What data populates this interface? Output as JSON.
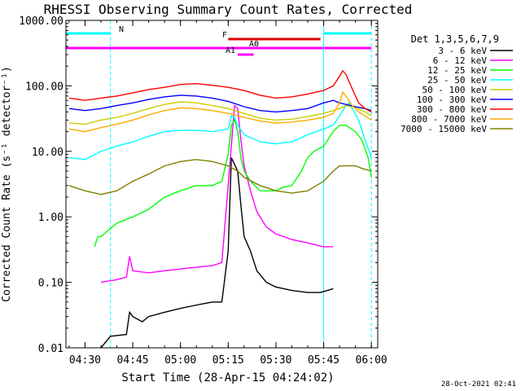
{
  "chart_data": {
    "type": "line",
    "title": "RHESSI Observing Summary Count Rates, Corrected",
    "xlabel": "Start Time (28-Apr-15 04:24:02)",
    "ylabel": "Corrected Count Rate (s⁻¹ detector⁻¹)",
    "footer": "28-Oct-2021 02:41",
    "y_scale": "log",
    "ylim": [
      0.01,
      1000
    ],
    "y_ticks": [
      {
        "v": 0.01,
        "label": "0.01"
      },
      {
        "v": 0.1,
        "label": "0.10"
      },
      {
        "v": 1,
        "label": "1.00"
      },
      {
        "v": 10,
        "label": "10.00"
      },
      {
        "v": 100,
        "label": "100.00"
      },
      {
        "v": 1000,
        "label": "1000.00"
      }
    ],
    "xlim": [
      264,
      362
    ],
    "x_ticks": [
      {
        "v": 270,
        "label": "04:30"
      },
      {
        "v": 285,
        "label": "04:45"
      },
      {
        "v": 300,
        "label": "05:00"
      },
      {
        "v": 315,
        "label": "05:15"
      },
      {
        "v": 330,
        "label": "05:30"
      },
      {
        "v": 345,
        "label": "05:45"
      },
      {
        "v": 360,
        "label": "06:00"
      }
    ],
    "legend": {
      "position": "right",
      "header": "Det 1,3,5,6,7,9"
    },
    "series": [
      {
        "name": "3 - 6 keV",
        "color": "#000000",
        "points": [
          [
            275,
            0.01
          ],
          [
            278,
            0.015
          ],
          [
            283,
            0.016
          ],
          [
            284,
            0.035
          ],
          [
            285,
            0.03
          ],
          [
            288,
            0.025
          ],
          [
            290,
            0.03
          ],
          [
            295,
            0.035
          ],
          [
            300,
            0.04
          ],
          [
            305,
            0.045
          ],
          [
            310,
            0.05
          ],
          [
            313,
            0.05
          ],
          [
            315,
            0.3
          ],
          [
            316,
            8
          ],
          [
            318,
            5
          ],
          [
            319,
            1.5
          ],
          [
            320,
            0.5
          ],
          [
            322,
            0.3
          ],
          [
            324,
            0.15
          ],
          [
            327,
            0.1
          ],
          [
            330,
            0.085
          ],
          [
            335,
            0.075
          ],
          [
            340,
            0.07
          ],
          [
            344,
            0.07
          ],
          [
            348,
            0.08
          ]
        ]
      },
      {
        "name": "6 - 12 keV",
        "color": "#ff00ff",
        "points": [
          [
            275,
            0.1
          ],
          [
            280,
            0.11
          ],
          [
            283,
            0.12
          ],
          [
            284,
            0.25
          ],
          [
            285,
            0.15
          ],
          [
            290,
            0.14
          ],
          [
            295,
            0.15
          ],
          [
            300,
            0.16
          ],
          [
            305,
            0.17
          ],
          [
            310,
            0.18
          ],
          [
            313,
            0.2
          ],
          [
            315,
            3
          ],
          [
            317,
            50
          ],
          [
            318,
            45
          ],
          [
            319,
            15
          ],
          [
            320,
            6
          ],
          [
            322,
            2.5
          ],
          [
            324,
            1.2
          ],
          [
            327,
            0.7
          ],
          [
            330,
            0.55
          ],
          [
            335,
            0.45
          ],
          [
            340,
            0.4
          ],
          [
            345,
            0.35
          ],
          [
            348,
            0.35
          ]
        ]
      },
      {
        "name": "12 - 25 keV",
        "color": "#00ff00",
        "points": [
          [
            273,
            0.35
          ],
          [
            274,
            0.5
          ],
          [
            275,
            0.5
          ],
          [
            280,
            0.8
          ],
          [
            285,
            1
          ],
          [
            290,
            1.3
          ],
          [
            295,
            2
          ],
          [
            300,
            2.5
          ],
          [
            305,
            3
          ],
          [
            310,
            3
          ],
          [
            313,
            3.5
          ],
          [
            315,
            9
          ],
          [
            316,
            25
          ],
          [
            317,
            30
          ],
          [
            318,
            20
          ],
          [
            319,
            8
          ],
          [
            320,
            5
          ],
          [
            322,
            3.5
          ],
          [
            325,
            2.5
          ],
          [
            328,
            2.5
          ],
          [
            330,
            2.5
          ],
          [
            332,
            2.8
          ],
          [
            335,
            3
          ],
          [
            338,
            5
          ],
          [
            340,
            8
          ],
          [
            342,
            10
          ],
          [
            345,
            12
          ],
          [
            348,
            20
          ],
          [
            350,
            25
          ],
          [
            352,
            25
          ],
          [
            355,
            20
          ],
          [
            357,
            15
          ],
          [
            359,
            8
          ],
          [
            360,
            4
          ]
        ]
      },
      {
        "name": "25 - 50 keV",
        "color": "#00ffff",
        "points": [
          [
            265,
            8
          ],
          [
            270,
            7.5
          ],
          [
            275,
            10
          ],
          [
            280,
            12
          ],
          [
            285,
            14
          ],
          [
            290,
            17
          ],
          [
            295,
            20
          ],
          [
            300,
            21
          ],
          [
            305,
            21
          ],
          [
            310,
            20
          ],
          [
            315,
            22
          ],
          [
            316,
            35
          ],
          [
            317,
            33
          ],
          [
            318,
            25
          ],
          [
            320,
            18
          ],
          [
            325,
            14
          ],
          [
            330,
            13
          ],
          [
            335,
            14
          ],
          [
            340,
            18
          ],
          [
            345,
            22
          ],
          [
            348,
            25
          ],
          [
            350,
            35
          ],
          [
            352,
            50
          ],
          [
            353,
            55
          ],
          [
            354,
            45
          ],
          [
            356,
            30
          ],
          [
            358,
            15
          ],
          [
            360,
            8
          ]
        ]
      },
      {
        "name": "50 - 100 keV",
        "color": "#cccc00",
        "points": [
          [
            265,
            27
          ],
          [
            270,
            26
          ],
          [
            275,
            30
          ],
          [
            280,
            33
          ],
          [
            285,
            38
          ],
          [
            290,
            45
          ],
          [
            295,
            52
          ],
          [
            300,
            57
          ],
          [
            305,
            55
          ],
          [
            310,
            50
          ],
          [
            315,
            45
          ],
          [
            320,
            38
          ],
          [
            325,
            32
          ],
          [
            330,
            30
          ],
          [
            335,
            31
          ],
          [
            340,
            34
          ],
          [
            345,
            38
          ],
          [
            348,
            42
          ],
          [
            350,
            45
          ],
          [
            352,
            50
          ],
          [
            355,
            47
          ],
          [
            358,
            40
          ],
          [
            360,
            35
          ]
        ]
      },
      {
        "name": "100 - 300 keV",
        "color": "#0000ff",
        "points": [
          [
            265,
            45
          ],
          [
            270,
            42
          ],
          [
            275,
            45
          ],
          [
            280,
            50
          ],
          [
            285,
            55
          ],
          [
            290,
            62
          ],
          [
            295,
            68
          ],
          [
            300,
            72
          ],
          [
            305,
            70
          ],
          [
            310,
            65
          ],
          [
            315,
            58
          ],
          [
            320,
            48
          ],
          [
            325,
            42
          ],
          [
            330,
            40
          ],
          [
            335,
            42
          ],
          [
            340,
            45
          ],
          [
            345,
            55
          ],
          [
            348,
            60
          ],
          [
            350,
            55
          ],
          [
            352,
            52
          ],
          [
            355,
            48
          ],
          [
            358,
            45
          ],
          [
            360,
            42
          ]
        ]
      },
      {
        "name": "300 - 800 keV",
        "color": "#ff0000",
        "points": [
          [
            265,
            65
          ],
          [
            270,
            60
          ],
          [
            275,
            65
          ],
          [
            280,
            70
          ],
          [
            285,
            78
          ],
          [
            290,
            88
          ],
          [
            295,
            95
          ],
          [
            300,
            105
          ],
          [
            305,
            108
          ],
          [
            310,
            102
          ],
          [
            315,
            95
          ],
          [
            320,
            85
          ],
          [
            325,
            72
          ],
          [
            330,
            65
          ],
          [
            335,
            68
          ],
          [
            340,
            75
          ],
          [
            345,
            85
          ],
          [
            348,
            100
          ],
          [
            350,
            140
          ],
          [
            351,
            170
          ],
          [
            352,
            150
          ],
          [
            354,
            90
          ],
          [
            356,
            55
          ],
          [
            358,
            45
          ],
          [
            360,
            40
          ]
        ]
      },
      {
        "name": "800 - 7000 keV",
        "color": "#ffaa00",
        "points": [
          [
            265,
            22
          ],
          [
            270,
            20
          ],
          [
            275,
            23
          ],
          [
            280,
            26
          ],
          [
            285,
            30
          ],
          [
            290,
            36
          ],
          [
            295,
            42
          ],
          [
            300,
            46
          ],
          [
            305,
            45
          ],
          [
            310,
            42
          ],
          [
            315,
            38
          ],
          [
            320,
            33
          ],
          [
            325,
            29
          ],
          [
            330,
            27
          ],
          [
            335,
            28
          ],
          [
            340,
            30
          ],
          [
            345,
            33
          ],
          [
            348,
            38
          ],
          [
            350,
            55
          ],
          [
            351,
            80
          ],
          [
            352,
            70
          ],
          [
            354,
            50
          ],
          [
            356,
            40
          ],
          [
            358,
            35
          ],
          [
            360,
            30
          ]
        ]
      },
      {
        "name": "7000 - 15000 keV",
        "color": "#808000",
        "points": [
          [
            265,
            3
          ],
          [
            270,
            2.5
          ],
          [
            275,
            2.2
          ],
          [
            280,
            2.5
          ],
          [
            285,
            3.5
          ],
          [
            290,
            4.5
          ],
          [
            295,
            6
          ],
          [
            300,
            7
          ],
          [
            305,
            7.5
          ],
          [
            310,
            7
          ],
          [
            315,
            6
          ],
          [
            318,
            5
          ],
          [
            320,
            4
          ],
          [
            325,
            3
          ],
          [
            330,
            2.5
          ],
          [
            335,
            2.3
          ],
          [
            340,
            2.5
          ],
          [
            345,
            3.5
          ],
          [
            348,
            5
          ],
          [
            350,
            6
          ],
          [
            353,
            6
          ],
          [
            355,
            6
          ],
          [
            357,
            5.5
          ],
          [
            360,
            5
          ]
        ]
      }
    ],
    "flags": [
      {
        "label": "N",
        "color": "#00ffff",
        "segments": [
          [
            264,
            278
          ],
          [
            345,
            360
          ]
        ]
      },
      {
        "label": "F",
        "color": "#dd0000",
        "segments": [
          [
            315,
            344
          ]
        ]
      },
      {
        "label": "A0",
        "color": "#ff00ff",
        "segments": [
          [
            264,
            360
          ]
        ]
      },
      {
        "label": "A1",
        "color": "#ff00ff",
        "segments": [
          [
            318,
            323
          ]
        ]
      }
    ],
    "vlines": [
      {
        "x": 278,
        "color": "#00ffff",
        "style": "dashed"
      },
      {
        "x": 345,
        "color": "#00ffff",
        "style": "solid"
      },
      {
        "x": 360,
        "color": "#00ffff",
        "style": "dashed"
      }
    ]
  }
}
